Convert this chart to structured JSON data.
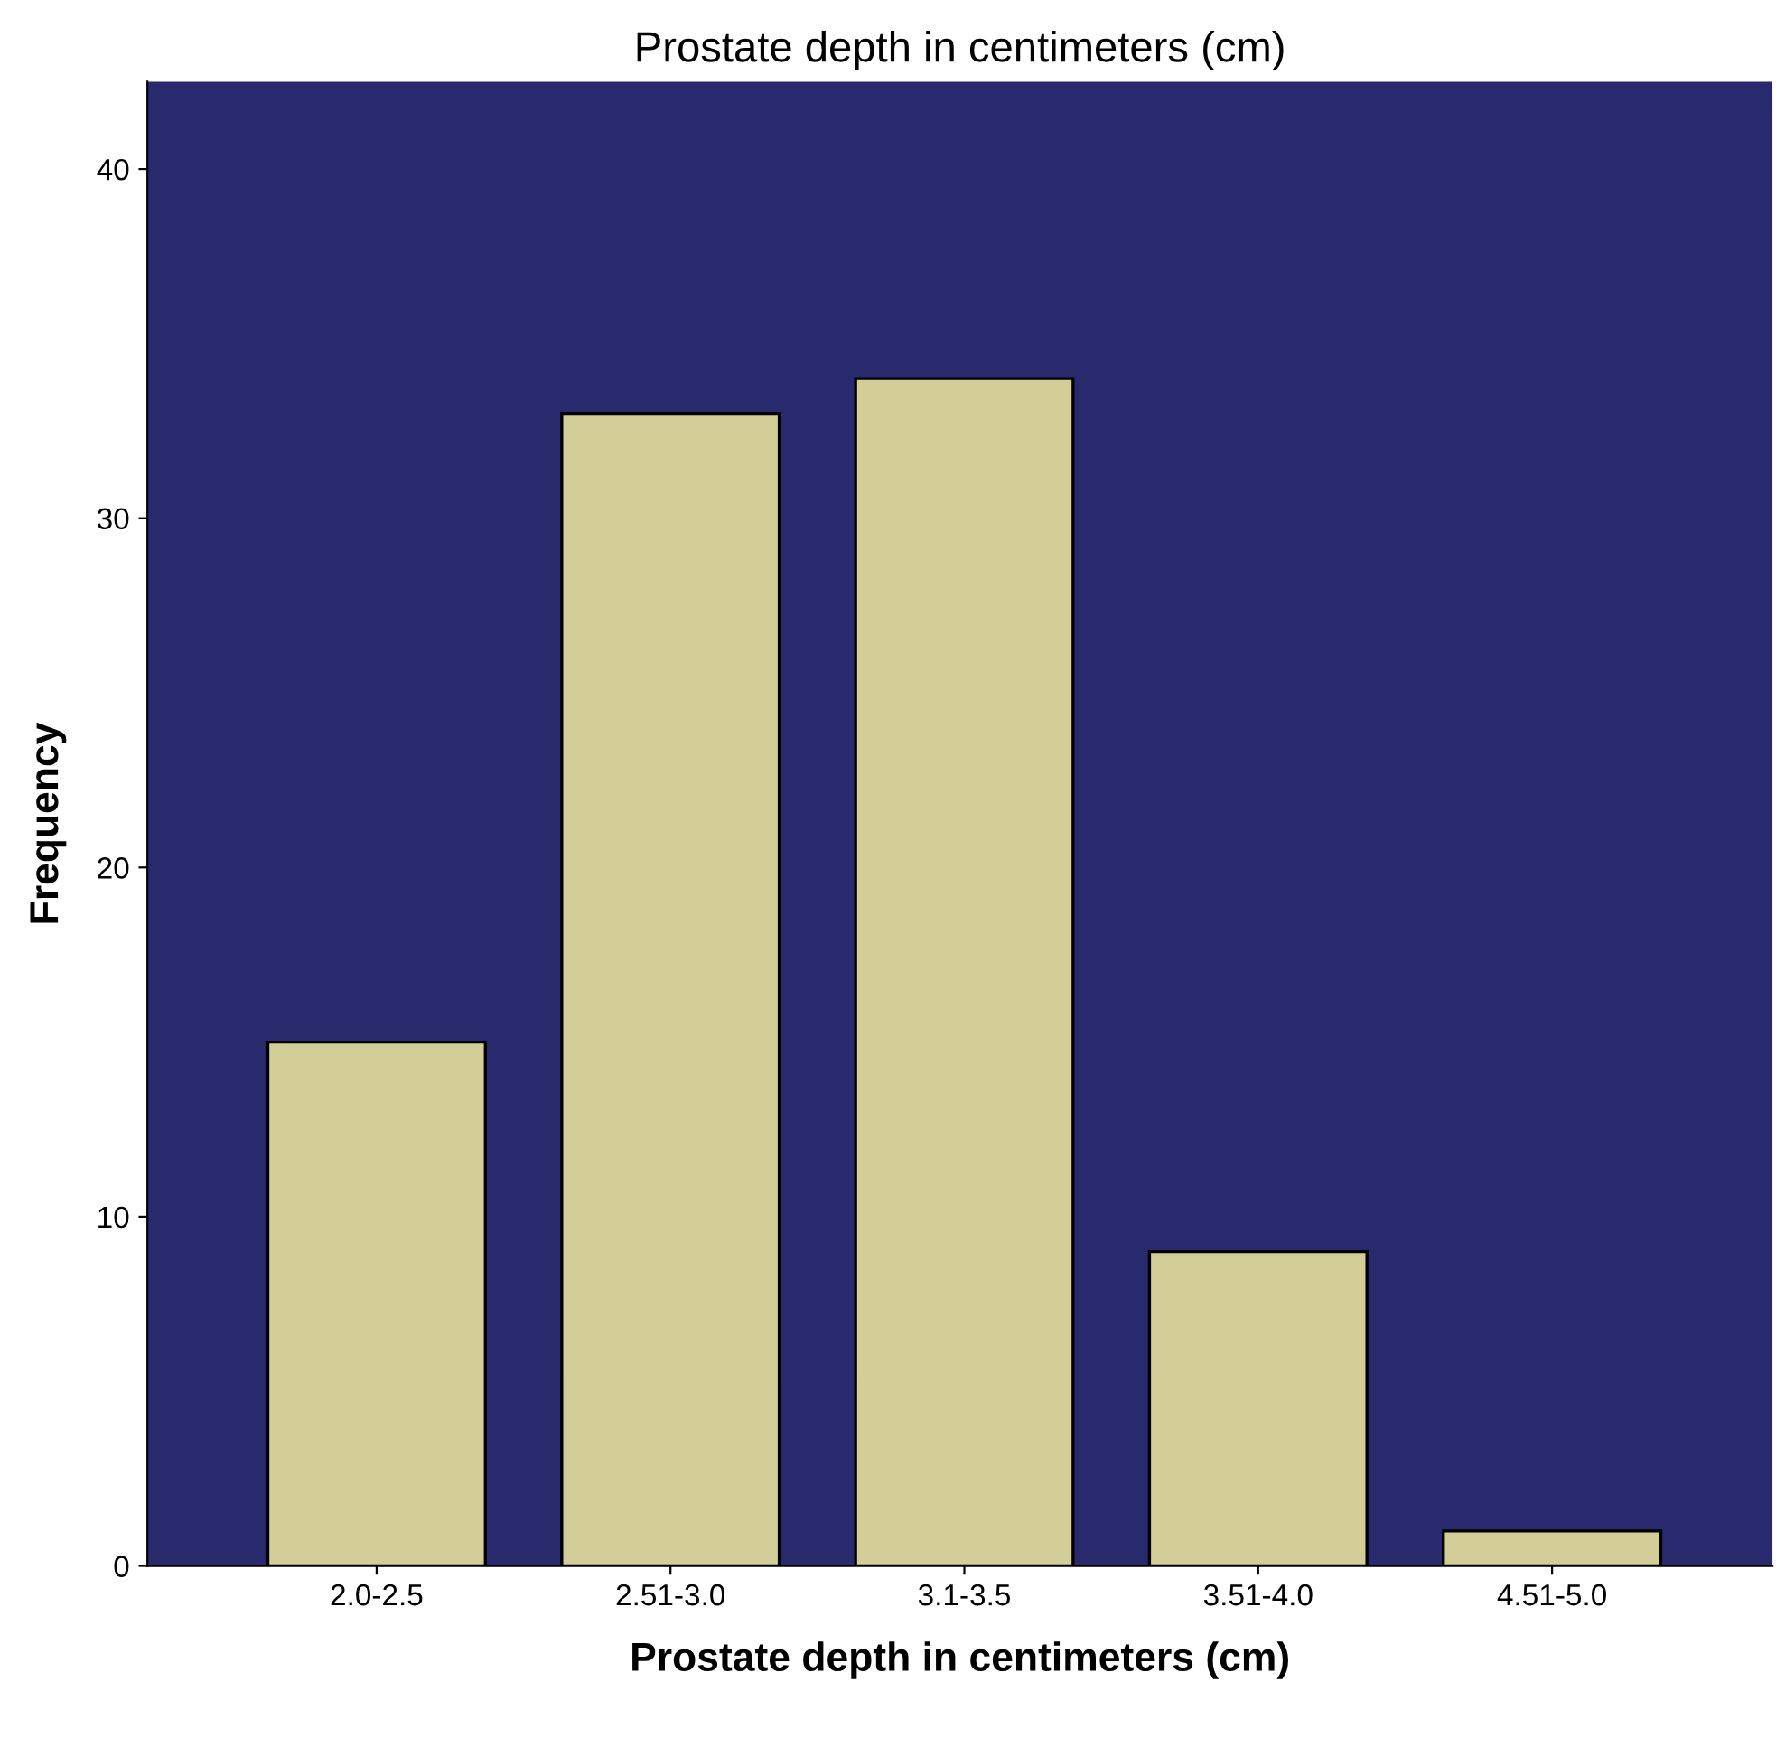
{
  "chart_data": {
    "type": "bar",
    "title": "Prostate depth in centimeters (cm)",
    "xlabel": "Prostate depth in centimeters (cm)",
    "ylabel": "Frequency",
    "categories": [
      "2.0-2.5",
      "2.51-3.0",
      "3.1-3.5",
      "3.51-4.0",
      "4.51-5.0"
    ],
    "values": [
      15,
      33,
      34,
      9,
      1
    ],
    "color": "#d3ce97",
    "ylim": [
      0,
      42.5
    ],
    "yticks": [
      0,
      10,
      20,
      30,
      40
    ],
    "grid": false,
    "legend": false
  }
}
